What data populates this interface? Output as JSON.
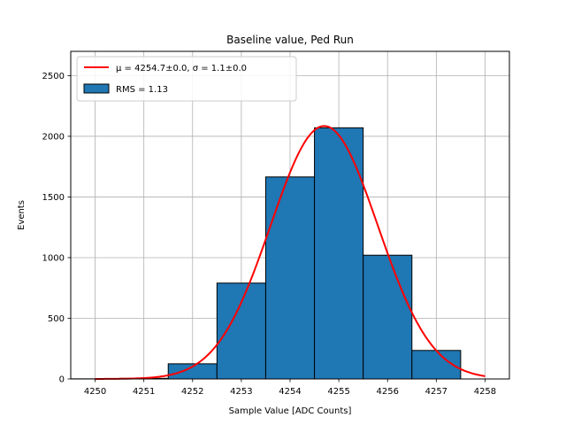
{
  "chart_data": {
    "type": "bar",
    "title": "Baseline value, Ped Run",
    "xlabel": "Sample Value [ADC Counts]",
    "ylabel": "Events",
    "xlim": [
      4249.5,
      4258.5
    ],
    "ylim": [
      0,
      2700
    ],
    "xticks": [
      "4250",
      "4251",
      "4252",
      "4253",
      "4254",
      "4255",
      "4256",
      "4257",
      "4258"
    ],
    "yticks": [
      "0",
      "500",
      "1000",
      "1500",
      "2000",
      "2500"
    ],
    "grid": true,
    "legend_position": "upper-left",
    "histogram": {
      "name": "RMS = 1.13",
      "bin_edges": [
        4249.5,
        4250.5,
        4251.5,
        4252.5,
        4253.5,
        4254.5,
        4255.5,
        4256.5,
        4257.5
      ],
      "values": [
        1,
        5,
        125,
        790,
        1665,
        2070,
        1020,
        235
      ],
      "color": "#1f77b4"
    },
    "fit": {
      "name": "μ = 4254.7±0.0, σ = 1.1±0.0",
      "mu": 4254.7,
      "sigma": 1.1,
      "amplitude": 2085,
      "x_range": [
        4250,
        4258
      ],
      "color": "#ff0000"
    }
  }
}
